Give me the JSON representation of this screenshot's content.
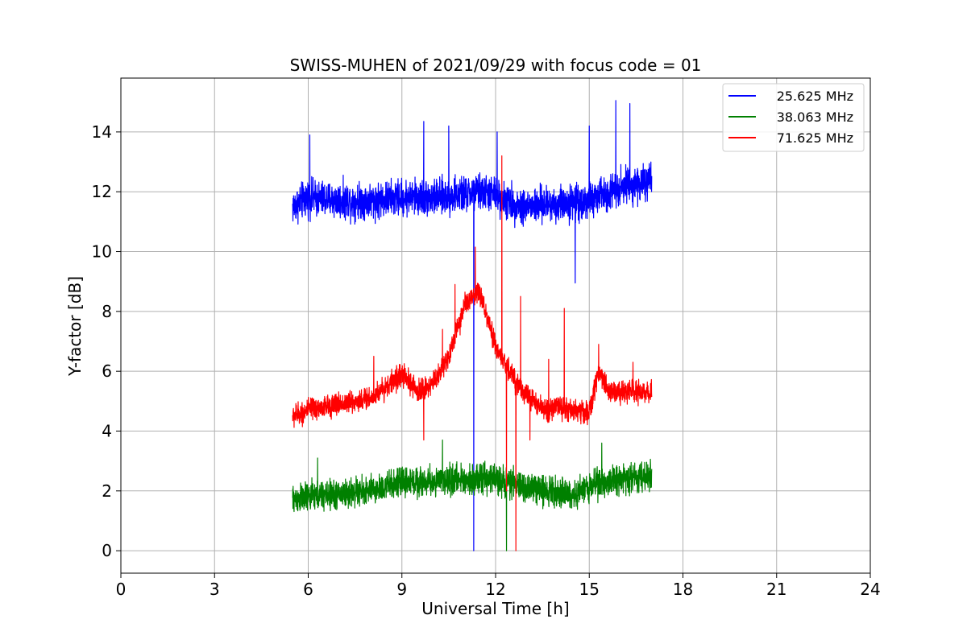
{
  "chart_data": {
    "type": "line",
    "title": "SWISS-MUHEN of 2021/09/29 with focus code = 01",
    "xlabel": "Universal Time [h]",
    "ylabel": "Y-factor [dB]",
    "xlim": [
      0,
      24
    ],
    "ylim": [
      -0.75,
      15.8
    ],
    "xticks": [
      0,
      3,
      6,
      9,
      12,
      15,
      18,
      21,
      24
    ],
    "yticks": [
      0,
      2,
      4,
      6,
      8,
      10,
      12,
      14
    ],
    "grid": true,
    "legend_position": "top-right",
    "series": [
      {
        "name": "25.625 MHz",
        "color": "#0000ff",
        "base_profile": {
          "x": [
            5.5,
            6,
            7,
            8,
            9,
            10,
            11,
            11.5,
            12,
            12.5,
            13,
            14,
            15,
            16,
            17
          ],
          "y": [
            11.5,
            11.8,
            11.7,
            11.7,
            11.8,
            11.8,
            11.9,
            12.0,
            11.9,
            11.6,
            11.5,
            11.6,
            11.7,
            12.2,
            12.3
          ]
        },
        "noise": 0.55,
        "spikes": [
          {
            "x": 6.05,
            "y": 13.9
          },
          {
            "x": 9.7,
            "y": 14.35
          },
          {
            "x": 10.5,
            "y": 14.2
          },
          {
            "x": 12.05,
            "y": 14.0
          },
          {
            "x": 15.0,
            "y": 14.2
          },
          {
            "x": 15.85,
            "y": 15.05
          },
          {
            "x": 16.3,
            "y": 14.95
          },
          {
            "x": 11.3,
            "y": 0.0
          },
          {
            "x": 14.55,
            "y": 8.95
          }
        ]
      },
      {
        "name": "38.063 MHz",
        "color": "#008000",
        "base_profile": {
          "x": [
            5.5,
            6,
            7,
            8,
            9,
            10,
            11,
            12,
            13,
            14,
            14.5,
            15,
            16,
            17
          ],
          "y": [
            1.7,
            1.8,
            1.9,
            2.0,
            2.3,
            2.3,
            2.4,
            2.4,
            2.1,
            2.0,
            1.8,
            2.2,
            2.4,
            2.5
          ]
        },
        "noise": 0.45,
        "spikes": [
          {
            "x": 6.3,
            "y": 3.1
          },
          {
            "x": 10.3,
            "y": 3.7
          },
          {
            "x": 15.4,
            "y": 3.6
          },
          {
            "x": 12.35,
            "y": 0.0
          }
        ]
      },
      {
        "name": "71.625 MHz",
        "color": "#ff0000",
        "base_profile": {
          "x": [
            5.5,
            6,
            7,
            8,
            8.5,
            9,
            9.5,
            10,
            10.5,
            11,
            11.5,
            12,
            12.5,
            13,
            13.5,
            14,
            15,
            15.3,
            15.6,
            16,
            17
          ],
          "y": [
            4.5,
            4.7,
            4.9,
            5.1,
            5.5,
            5.9,
            5.3,
            5.6,
            6.5,
            8.2,
            8.6,
            6.8,
            5.9,
            5.2,
            4.7,
            4.8,
            4.6,
            6.0,
            5.4,
            5.3,
            5.3
          ]
        },
        "noise": 0.35,
        "spikes": [
          {
            "x": 8.1,
            "y": 6.5
          },
          {
            "x": 9.7,
            "y": 3.7
          },
          {
            "x": 10.3,
            "y": 7.4
          },
          {
            "x": 10.4,
            "y": 6.6
          },
          {
            "x": 10.7,
            "y": 8.9
          },
          {
            "x": 11.35,
            "y": 10.15
          },
          {
            "x": 12.2,
            "y": 13.2
          },
          {
            "x": 12.35,
            "y": 2.0
          },
          {
            "x": 12.65,
            "y": 0.0
          },
          {
            "x": 12.8,
            "y": 8.5
          },
          {
            "x": 13.1,
            "y": 3.7
          },
          {
            "x": 13.7,
            "y": 6.4
          },
          {
            "x": 14.2,
            "y": 8.1
          },
          {
            "x": 15.3,
            "y": 6.9
          },
          {
            "x": 16.4,
            "y": 6.3
          }
        ]
      }
    ]
  }
}
